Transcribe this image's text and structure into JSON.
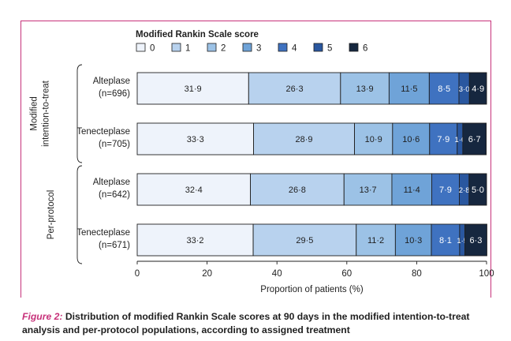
{
  "chart_data": {
    "type": "bar",
    "orientation": "horizontal",
    "stacked": true,
    "legend": {
      "title": "Modified Rankin Scale score",
      "entries": [
        "0",
        "1",
        "2",
        "3",
        "4",
        "5",
        "6"
      ],
      "colors": [
        "#eef3fb",
        "#b8d2ee",
        "#9cc2e6",
        "#6fa3d8",
        "#3f72c0",
        "#2a579f",
        "#16273f"
      ],
      "text_colors": [
        "#1f1f1f",
        "#1f1f1f",
        "#1f1f1f",
        "#1f1f1f",
        "#ffffff",
        "#ffffff",
        "#ffffff"
      ]
    },
    "groups": [
      {
        "label": "Modified intention-to-treat",
        "label_lines": [
          "Modified",
          "intention-to-treat"
        ]
      },
      {
        "label": "Per-protocol",
        "label_lines": [
          "Per-protocol"
        ]
      }
    ],
    "rows": [
      {
        "group": 0,
        "label_lines": [
          "Alteplase",
          "(n=696)"
        ],
        "values": [
          31.9,
          26.3,
          13.9,
          11.5,
          8.5,
          3.0,
          4.9
        ],
        "labels": [
          "31·9",
          "26·3",
          "13·9",
          "11·5",
          "8·5",
          "3·0",
          "4·9"
        ]
      },
      {
        "group": 0,
        "label_lines": [
          "Tenecteplase",
          "(n=705)"
        ],
        "values": [
          33.3,
          28.9,
          10.9,
          10.6,
          7.9,
          1.6,
          6.7
        ],
        "labels": [
          "33·3",
          "28·9",
          "10·9",
          "10·6",
          "7·9",
          "1·6",
          "6·7"
        ]
      },
      {
        "group": 1,
        "label_lines": [
          "Alteplase",
          "(n=642)"
        ],
        "values": [
          32.4,
          26.8,
          13.7,
          11.4,
          7.9,
          2.8,
          5.0
        ],
        "labels": [
          "32·4",
          "26·8",
          "13·7",
          "11·4",
          "7·9",
          "2·8",
          "5·0"
        ]
      },
      {
        "group": 1,
        "label_lines": [
          "Tenecteplase",
          "(n=671)"
        ],
        "values": [
          33.2,
          29.5,
          11.2,
          10.3,
          8.1,
          1.5,
          6.3
        ],
        "labels": [
          "33·2",
          "29·5",
          "11·2",
          "10·3",
          "8·1",
          "1·5",
          "6·3"
        ]
      }
    ],
    "xaxis": {
      "label": "Proportion of patients (%)",
      "ticks": [
        0,
        20,
        40,
        60,
        80,
        100
      ],
      "range": [
        0,
        100
      ]
    },
    "grid": false
  },
  "caption": {
    "lead": "Figure 2:",
    "text": " Distribution of modified Rankin Scale scores at 90 days in the modified intention-to-treat analysis and per-protocol populations, according to assigned treatment"
  }
}
